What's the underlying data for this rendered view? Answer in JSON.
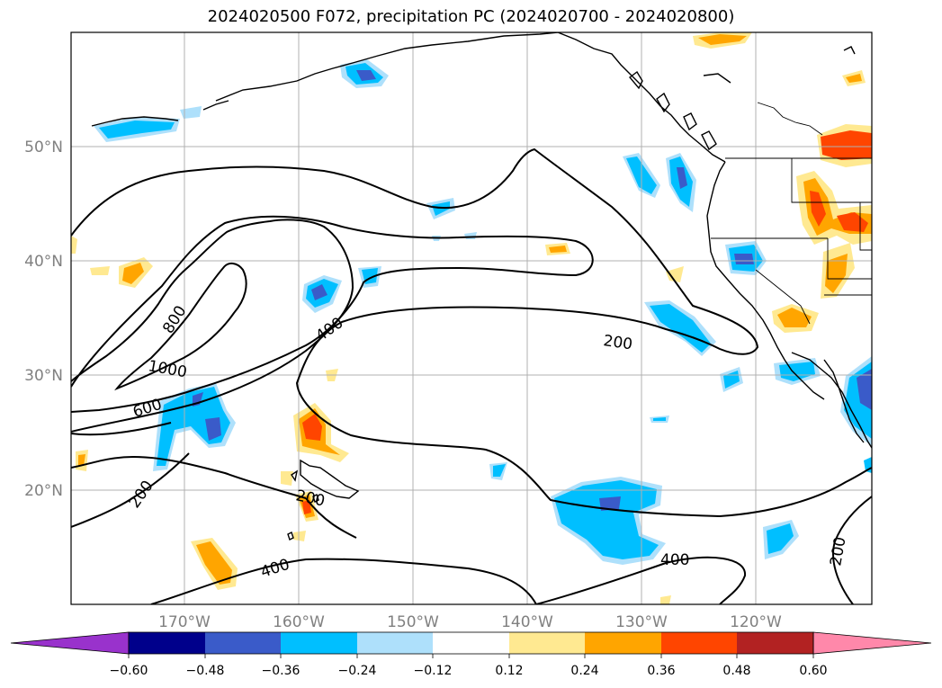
{
  "title": "2024020500 F072, precipitation PC (2024020700 - 2024020800)",
  "map": {
    "lon_ticks": [
      "170°W",
      "160°W",
      "150°W",
      "140°W",
      "130°W",
      "120°W"
    ],
    "lat_ticks": [
      "50°N",
      "40°N",
      "30°N",
      "20°N"
    ],
    "gridlines": true,
    "contour_labels": [
      "800",
      "1000",
      "400",
      "200",
      "600",
      "200",
      "200",
      "400",
      "400",
      "200"
    ],
    "colors": {
      "land_outline": "#000000",
      "grid": "#b0b0b0",
      "neg_light": "#aee0fb",
      "neg_mid": "#00bfff",
      "neg_dark": "#3a5bc9",
      "pos_light": "#ffe991",
      "pos_mid": "#ffa500",
      "pos_dark": "#ff4500"
    }
  },
  "colorbar": {
    "tick_labels": [
      "−0.60",
      "−0.48",
      "−0.36",
      "−0.24",
      "−0.12",
      "0.12",
      "0.24",
      "0.36",
      "0.48",
      "0.60"
    ],
    "colors": [
      "#9932cc",
      "#00008b",
      "#3a5bc9",
      "#00bfff",
      "#aee0fb",
      "#ffffff",
      "#ffe991",
      "#ffa500",
      "#ff4500",
      "#b22222",
      "#ff88aa"
    ]
  }
}
